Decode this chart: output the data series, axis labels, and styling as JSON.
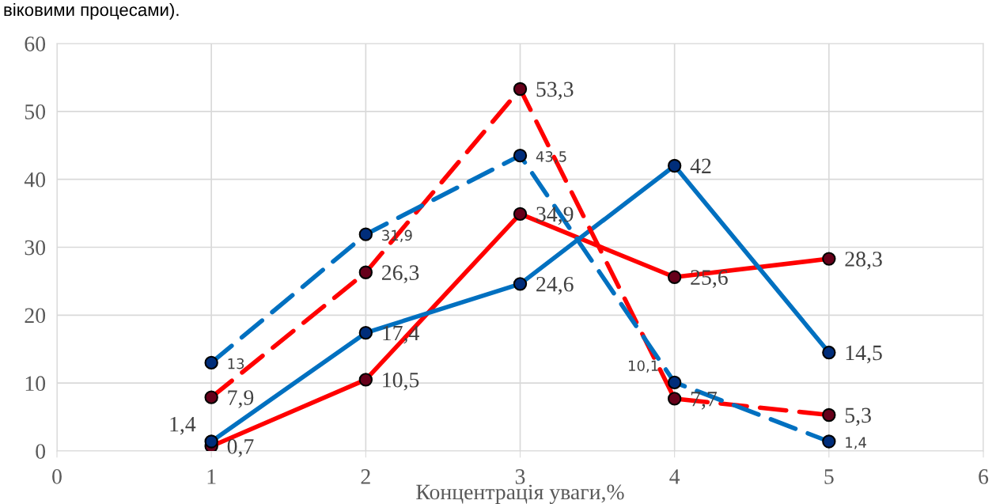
{
  "chart_data": {
    "type": "line",
    "xlabel": "Концентрація уваги,%",
    "annotations": [
      "віковими процесами)."
    ],
    "x": [
      1,
      2,
      3,
      4,
      5
    ],
    "xlim": [
      0,
      6
    ],
    "xticks": [
      0,
      1,
      2,
      3,
      4,
      5,
      6
    ],
    "ylim": [
      0,
      60
    ],
    "yticks": [
      0,
      10,
      20,
      30,
      40,
      50,
      60
    ],
    "grid": true,
    "legend": false,
    "marker": "circle",
    "series": [
      {
        "color": "#ff0000",
        "line_style": "solid",
        "values": [
          0.7,
          10.5,
          34.9,
          25.6,
          28.3
        ],
        "value_labels": [
          "0,7",
          "10,5",
          "34,9",
          "25,6",
          "28,3"
        ]
      },
      {
        "color": "#0070c0",
        "line_style": "solid",
        "values": [
          1.4,
          17.4,
          24.6,
          42,
          14.5
        ],
        "value_labels": [
          "1,4",
          "17,4",
          "24,6",
          "42",
          "14,5"
        ]
      },
      {
        "color": "#ff0000",
        "line_style": "dashed",
        "values": [
          7.9,
          26.3,
          53.3,
          7.7,
          5.3
        ],
        "value_labels": [
          "7,9",
          "26,3",
          "53,3",
          "7,7",
          "5,3"
        ]
      },
      {
        "color": "#0070c0",
        "line_style": "dashed",
        "values": [
          13,
          31.9,
          43.5,
          10.1,
          1.4
        ],
        "value_labels": [
          "13",
          "31,9",
          "43,5",
          "10,1",
          "1,4"
        ]
      }
    ]
  }
}
